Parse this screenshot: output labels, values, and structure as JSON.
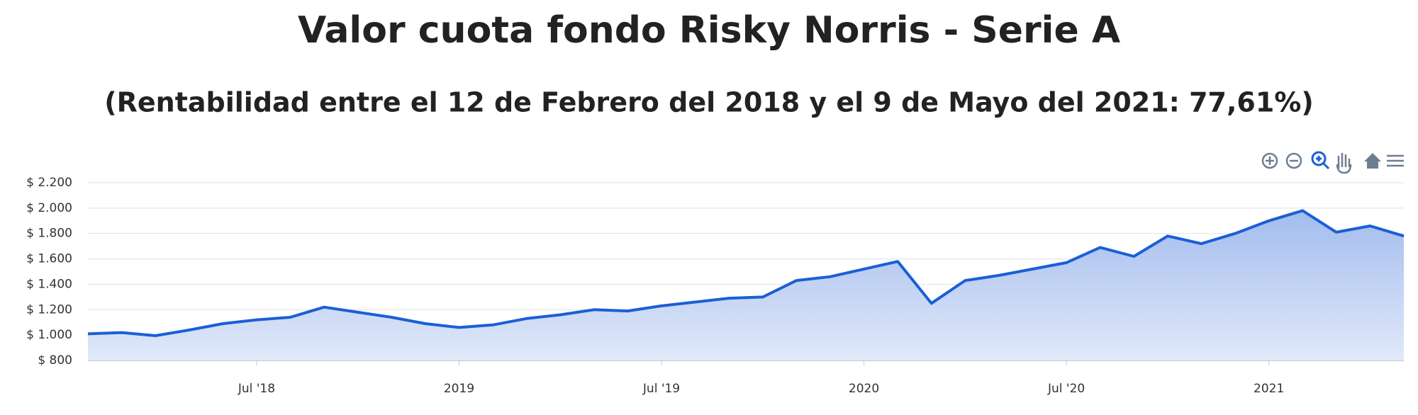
{
  "chart_data": {
    "type": "area",
    "title": "Valor cuota fondo Risky Norris - Serie A",
    "subtitle": "(Rentabilidad entre el 12 de Febrero del 2018 y el 9 de Mayo del 2021: 77,61%)",
    "x": [
      "2018-02",
      "2018-03",
      "2018-04",
      "2018-05",
      "2018-06",
      "2018-07",
      "2018-08",
      "2018-09",
      "2018-10",
      "2018-11",
      "2018-12",
      "2019-01",
      "2019-02",
      "2019-03",
      "2019-04",
      "2019-05",
      "2019-06",
      "2019-07",
      "2019-08",
      "2019-09",
      "2019-10",
      "2019-11",
      "2019-12",
      "2020-01",
      "2020-02",
      "2020-03",
      "2020-04",
      "2020-05",
      "2020-06",
      "2020-07",
      "2020-08",
      "2020-09",
      "2020-10",
      "2020-11",
      "2020-12",
      "2021-01",
      "2021-02",
      "2021-03",
      "2021-04",
      "2021-05"
    ],
    "values": [
      1010,
      1020,
      995,
      1040,
      1090,
      1120,
      1140,
      1220,
      1180,
      1140,
      1090,
      1060,
      1080,
      1130,
      1160,
      1200,
      1190,
      1230,
      1260,
      1290,
      1300,
      1430,
      1460,
      1520,
      1580,
      1250,
      1430,
      1470,
      1520,
      1570,
      1690,
      1620,
      1780,
      1720,
      1800,
      1900,
      1980,
      1810,
      1860,
      1780
    ],
    "color": "#1a5fd6",
    "xlim": [
      "2018-02",
      "2021-05"
    ],
    "xticks": [
      {
        "value": "2018-07",
        "label": "Jul '18"
      },
      {
        "value": "2019-01",
        "label": "2019"
      },
      {
        "value": "2019-07",
        "label": "Jul '19"
      },
      {
        "value": "2020-01",
        "label": "2020"
      },
      {
        "value": "2020-07",
        "label": "Jul '20"
      },
      {
        "value": "2021-01",
        "label": "2021"
      }
    ],
    "ylim": [
      800,
      2200
    ],
    "yticks": [
      {
        "value": 800,
        "label": "$ 800"
      },
      {
        "value": 1000,
        "label": "$ 1.000"
      },
      {
        "value": 1200,
        "label": "$ 1.200"
      },
      {
        "value": 1400,
        "label": "$ 1.400"
      },
      {
        "value": 1600,
        "label": "$ 1.600"
      },
      {
        "value": 1800,
        "label": "$ 1.800"
      },
      {
        "value": 2000,
        "label": "$ 2.000"
      },
      {
        "value": 2200,
        "label": "$ 2.200"
      }
    ],
    "grid": true
  }
}
